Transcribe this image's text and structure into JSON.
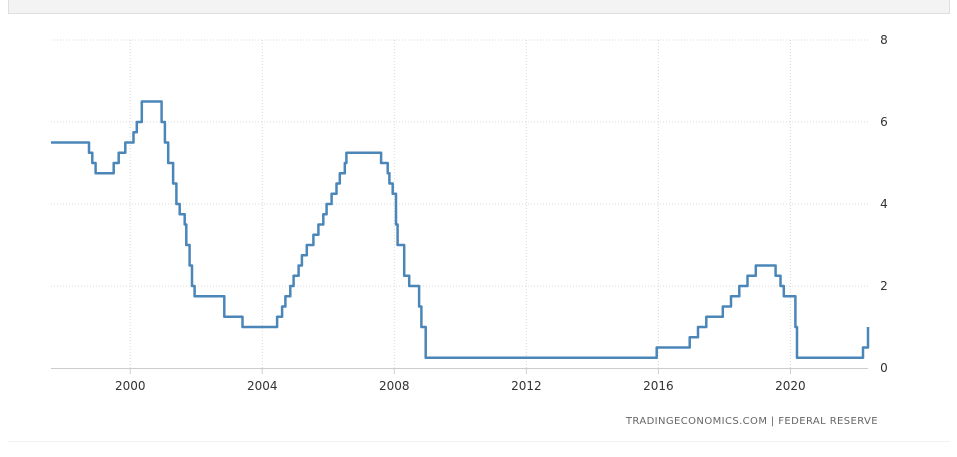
{
  "source_credit": "TRADINGECONOMICS.COM | FEDERAL RESERVE",
  "colors": {
    "line": "#4a86b8",
    "grid": "#d8d8d8",
    "axis": "#cccccc",
    "text": "#333333",
    "top_bar": "#f3f3f3"
  },
  "chart_data": {
    "type": "line",
    "title": "",
    "xlabel": "",
    "ylabel": "",
    "xlim": [
      1997.6,
      2022.35
    ],
    "ylim": [
      0,
      8
    ],
    "x_ticks": [
      2000,
      2004,
      2008,
      2012,
      2016,
      2020
    ],
    "x_tick_labels": [
      "2000",
      "2004",
      "2008",
      "2012",
      "2016",
      "2020"
    ],
    "y_ticks": [
      0,
      2,
      4,
      6,
      8
    ],
    "y_tick_labels": [
      "0",
      "2",
      "4",
      "6",
      "8"
    ],
    "y_axis_side": "right",
    "grid": true,
    "legend": "none",
    "step": true,
    "series": [
      {
        "values": [
          [
            1997.6,
            5.5
          ],
          [
            1998.75,
            5.25
          ],
          [
            1998.85,
            5.0
          ],
          [
            1998.95,
            4.75
          ],
          [
            1999.5,
            5.0
          ],
          [
            1999.65,
            5.25
          ],
          [
            1999.85,
            5.5
          ],
          [
            2000.1,
            5.75
          ],
          [
            2000.2,
            6.0
          ],
          [
            2000.35,
            6.5
          ],
          [
            2000.95,
            6.0
          ],
          [
            2001.05,
            5.5
          ],
          [
            2001.15,
            5.0
          ],
          [
            2001.3,
            4.5
          ],
          [
            2001.4,
            4.0
          ],
          [
            2001.5,
            3.75
          ],
          [
            2001.65,
            3.5
          ],
          [
            2001.7,
            3.0
          ],
          [
            2001.8,
            2.5
          ],
          [
            2001.87,
            2.0
          ],
          [
            2001.95,
            1.75
          ],
          [
            2002.85,
            1.25
          ],
          [
            2003.4,
            1.0
          ],
          [
            2004.45,
            1.25
          ],
          [
            2004.6,
            1.5
          ],
          [
            2004.7,
            1.75
          ],
          [
            2004.85,
            2.0
          ],
          [
            2004.95,
            2.25
          ],
          [
            2005.1,
            2.5
          ],
          [
            2005.2,
            2.75
          ],
          [
            2005.35,
            3.0
          ],
          [
            2005.55,
            3.25
          ],
          [
            2005.7,
            3.5
          ],
          [
            2005.85,
            3.75
          ],
          [
            2005.95,
            4.0
          ],
          [
            2006.1,
            4.25
          ],
          [
            2006.25,
            4.5
          ],
          [
            2006.35,
            4.75
          ],
          [
            2006.5,
            5.0
          ],
          [
            2006.55,
            5.25
          ],
          [
            2007.6,
            5.0
          ],
          [
            2007.8,
            4.75
          ],
          [
            2007.85,
            4.5
          ],
          [
            2007.95,
            4.25
          ],
          [
            2008.05,
            3.5
          ],
          [
            2008.1,
            3.0
          ],
          [
            2008.3,
            2.25
          ],
          [
            2008.45,
            2.0
          ],
          [
            2008.75,
            1.5
          ],
          [
            2008.82,
            1.0
          ],
          [
            2008.95,
            0.25
          ],
          [
            2015.95,
            0.5
          ],
          [
            2016.95,
            0.75
          ],
          [
            2017.2,
            1.0
          ],
          [
            2017.45,
            1.25
          ],
          [
            2017.95,
            1.5
          ],
          [
            2018.2,
            1.75
          ],
          [
            2018.45,
            2.0
          ],
          [
            2018.7,
            2.25
          ],
          [
            2018.95,
            2.5
          ],
          [
            2019.55,
            2.25
          ],
          [
            2019.7,
            2.0
          ],
          [
            2019.8,
            1.75
          ],
          [
            2020.15,
            1.0
          ],
          [
            2020.2,
            0.25
          ],
          [
            2022.2,
            0.5
          ],
          [
            2022.35,
            1.0
          ]
        ]
      }
    ]
  }
}
